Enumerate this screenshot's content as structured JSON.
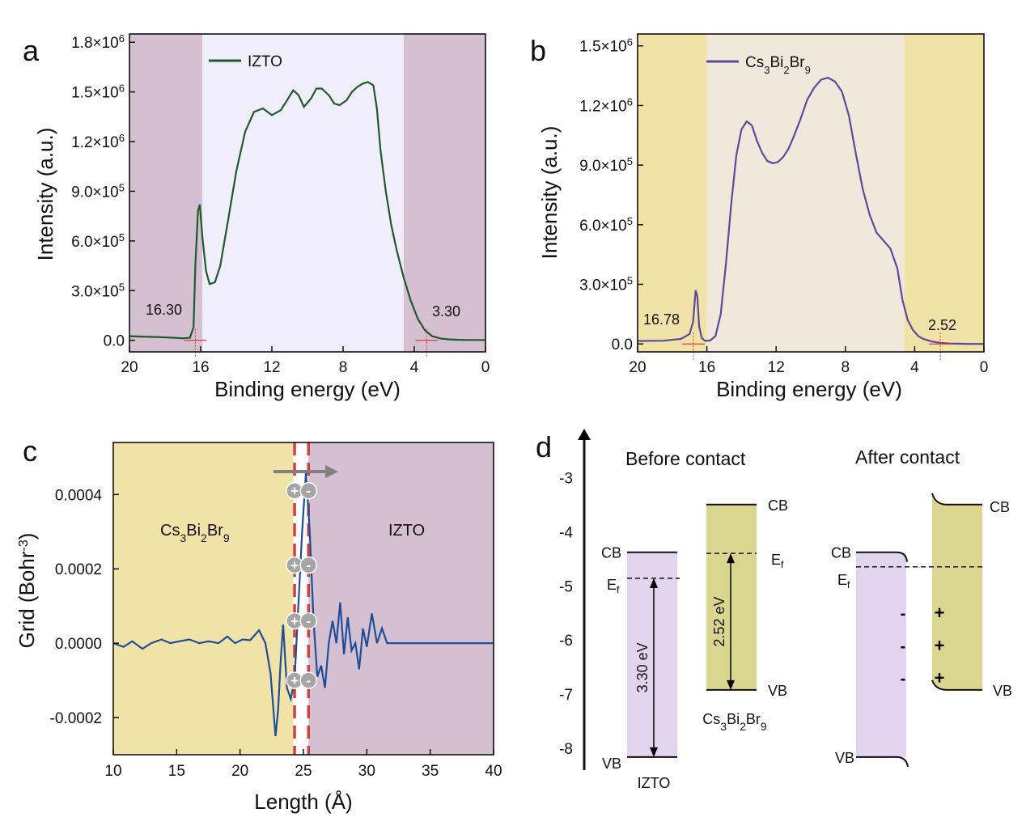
{
  "chart_data": [
    {
      "panel": "a",
      "type": "line",
      "xlabel": "Binding energy (eV)",
      "ylabel": "Intensity (a.u.)",
      "xlim": [
        20,
        0
      ],
      "ylim": [
        -70000,
        1850000
      ],
      "xticks": [
        "20",
        "16",
        "12",
        "8",
        "4",
        "0"
      ],
      "yticks": [
        "0.0",
        "3.0×10^5",
        "6.0×10^5",
        "9.0×10^5",
        "1.2×10^6",
        "1.5×10^6",
        "1.8×10^6"
      ],
      "legend": "IZTO",
      "line_color": "#1e5a2a",
      "shaded_regions": [
        {
          "from": 20,
          "to": 15.9,
          "color": "#d4c0d0"
        },
        {
          "from": 15.9,
          "to": 4.6,
          "color": "#f0eefa"
        },
        {
          "from": 4.6,
          "to": 0,
          "color": "#d4c0d0"
        }
      ],
      "annotations": [
        {
          "text": "16.30",
          "x": 16.3
        },
        {
          "text": "3.30",
          "x": 3.3
        }
      ],
      "x": [
        20,
        18,
        17,
        16.6,
        16.4,
        16.3,
        16.15,
        16.05,
        15.9,
        15.7,
        15.5,
        15.2,
        14.9,
        14.5,
        14,
        13.5,
        13,
        12.5,
        12,
        11.5,
        11.2,
        10.8,
        10.5,
        10.2,
        9.8,
        9.5,
        9.2,
        8.8,
        8.5,
        8.2,
        7.8,
        7.5,
        7.2,
        6.9,
        6.6,
        6.3,
        6.1,
        5.9,
        5.6,
        5.3,
        5.0,
        4.6,
        4.2,
        3.8,
        3.4,
        3.0,
        2.5,
        2.0,
        1.5,
        1.0,
        0.5,
        0
      ],
      "y": [
        25000,
        18000,
        12000,
        15000,
        80000,
        450000,
        780000,
        820000,
        620000,
        420000,
        340000,
        350000,
        450000,
        700000,
        1020000,
        1260000,
        1380000,
        1400000,
        1360000,
        1390000,
        1440000,
        1510000,
        1480000,
        1410000,
        1460000,
        1520000,
        1520000,
        1480000,
        1430000,
        1420000,
        1450000,
        1500000,
        1530000,
        1550000,
        1560000,
        1540000,
        1400000,
        1150000,
        900000,
        700000,
        550000,
        380000,
        240000,
        130000,
        60000,
        25000,
        10000,
        5000,
        3000,
        2000,
        2000,
        2000
      ]
    },
    {
      "panel": "b",
      "type": "line",
      "xlabel": "Binding energy (eV)",
      "ylabel": "Intensity (a.u.)",
      "xlim": [
        20,
        0
      ],
      "ylim": [
        -40000,
        1560000
      ],
      "xticks": [
        "20",
        "16",
        "12",
        "8",
        "4",
        "0"
      ],
      "yticks": [
        "0.0",
        "3.0×10^5",
        "6.0×10^5",
        "9.0×10^5",
        "1.2×10^6",
        "1.5×10^6"
      ],
      "legend": "Cs3Bi2Br9",
      "line_color": "#5b4a9b",
      "shaded_regions": [
        {
          "from": 20,
          "to": 16.0,
          "color": "#f1e3a8"
        },
        {
          "from": 16.0,
          "to": 4.6,
          "color": "#f0e9db"
        },
        {
          "from": 4.6,
          "to": 0,
          "color": "#f1e3a8"
        }
      ],
      "annotations": [
        {
          "text": "16.78",
          "x": 16.78
        },
        {
          "text": "2.52",
          "x": 2.52
        }
      ],
      "x": [
        20,
        18.5,
        17.5,
        17.0,
        16.8,
        16.65,
        16.55,
        16.45,
        16.3,
        16.1,
        15.8,
        15.5,
        15.2,
        14.9,
        14.6,
        14.3,
        14.0,
        13.7,
        13.4,
        13.1,
        12.8,
        12.5,
        12.2,
        11.9,
        11.6,
        11.3,
        11.0,
        10.6,
        10.2,
        9.8,
        9.4,
        9.0,
        8.6,
        8.2,
        7.8,
        7.4,
        7.0,
        6.6,
        6.2,
        5.8,
        5.4,
        5.0,
        4.7,
        4.4,
        4.1,
        3.8,
        3.5,
        3.0,
        2.5,
        2.0,
        1.5,
        1.0,
        0.5,
        0
      ],
      "y": [
        15000,
        16000,
        25000,
        50000,
        110000,
        270000,
        240000,
        90000,
        30000,
        15000,
        18000,
        40000,
        150000,
        400000,
        700000,
        950000,
        1080000,
        1120000,
        1100000,
        1020000,
        960000,
        920000,
        910000,
        915000,
        940000,
        980000,
        1040000,
        1130000,
        1230000,
        1290000,
        1330000,
        1340000,
        1320000,
        1270000,
        1150000,
        960000,
        780000,
        650000,
        560000,
        520000,
        480000,
        380000,
        220000,
        120000,
        70000,
        40000,
        25000,
        12000,
        5000,
        2000,
        1000,
        500,
        0,
        0
      ]
    },
    {
      "panel": "c",
      "type": "line",
      "xlabel": "Length (Å)",
      "ylabel": "Grid (Bohr^-3)",
      "xlim": [
        10,
        40
      ],
      "ylim": [
        -0.0003,
        0.00054
      ],
      "xticks": [
        "10",
        "15",
        "20",
        "25",
        "30",
        "35",
        "40"
      ],
      "yticks": [
        "-0.0002",
        "0.0000",
        "0.0002",
        "0.0004"
      ],
      "line_color": "#1f4e99",
      "regions": [
        {
          "label": "Cs3Bi2Br9",
          "from": 10,
          "to": 24.2,
          "color": "#f1e3a8"
        },
        {
          "label": "",
          "from": 24.2,
          "to": 25.4,
          "color": "#ffffff"
        },
        {
          "label": "IZTO",
          "from": 25.4,
          "to": 40,
          "color": "#d4c0d0"
        }
      ],
      "interfaces": [
        24.3,
        25.4
      ],
      "charges": {
        "positive": "+",
        "negative": "-"
      },
      "x": [
        10,
        10.8,
        11.5,
        12.3,
        13.0,
        13.8,
        14.5,
        15.2,
        16.0,
        16.8,
        17.5,
        18.3,
        19.0,
        19.6,
        20.2,
        20.8,
        21.5,
        22.0,
        22.4,
        22.8,
        23.0,
        23.2,
        23.4,
        23.7,
        24.0,
        24.3,
        24.6,
        24.9,
        25.2,
        25.5,
        25.8,
        26.1,
        26.4,
        26.7,
        27.0,
        27.3,
        27.6,
        27.9,
        28.2,
        28.5,
        28.8,
        29.1,
        29.4,
        29.7,
        30.0,
        30.4,
        30.8,
        31.2,
        31.6,
        32.2,
        33.0,
        34.0,
        36.0,
        38.0,
        40.0
      ],
      "y": [
        0.0,
        -1e-05,
        5e-06,
        -1.5e-05,
        0.0,
        1e-05,
        0.0,
        5e-06,
        1e-05,
        0.0,
        5e-06,
        0.0,
        1.8e-05,
        0.0,
        1e-05,
        8e-06,
        3.5e-05,
        0.0,
        -8e-05,
        -0.00025,
        -0.00018,
        -5e-05,
        5e-05,
        -0.00012,
        -0.00015,
        -0.0001,
        0.0001,
        0.0003,
        0.00046,
        0.0003,
        6e-05,
        -9e-05,
        -6e-05,
        -0.00012,
        0.0,
        6e-05,
        0.0,
        0.00011,
        -3e-05,
        7e-05,
        -2e-05,
        0.0,
        -7e-05,
        4e-05,
        -1e-05,
        8e-05,
        0.0,
        4e-05,
        0.0,
        0.0,
        0.0,
        0.0,
        0.0,
        0.0,
        0.0
      ]
    },
    {
      "panel": "d",
      "type": "diagram",
      "ylim": [
        -8.4,
        -2.1
      ],
      "yticks": [
        "-3",
        "-4",
        "-5",
        "-6",
        "-7",
        "-8"
      ],
      "titles": {
        "before": "Before contact",
        "after": "After contact"
      },
      "izto": {
        "name": "IZTO",
        "CB": -4.38,
        "Ef": -4.86,
        "VB": -8.16,
        "gap": "3.30 eV",
        "color": "#e2d4ee"
      },
      "cs": {
        "name": "Cs3Bi2Br9",
        "CB": -3.5,
        "Ef": -4.4,
        "VB": -6.92,
        "gap": "2.52 eV",
        "color": "#dad690"
      },
      "after_Ef": -4.65,
      "labels": {
        "cb": "CB",
        "vb": "VB",
        "ef": "Ef",
        "minus": "-",
        "plus": "+"
      }
    }
  ],
  "panel_labels": [
    "a",
    "b",
    "c",
    "d"
  ]
}
